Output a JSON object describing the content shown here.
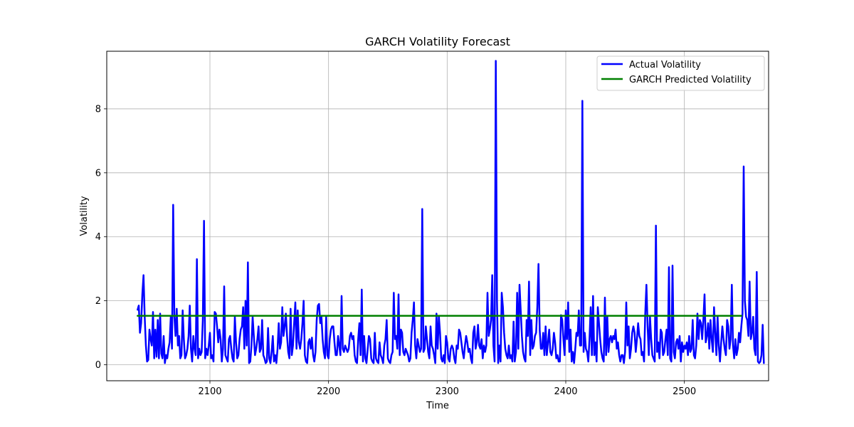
{
  "chart_data": {
    "type": "line",
    "title": "GARCH Volatility Forecast",
    "xlabel": "Time",
    "ylabel": "Volatility",
    "xlim": [
      2013,
      2571
    ],
    "ylim": [
      -0.5,
      9.8
    ],
    "xticks": [
      2100,
      2200,
      2300,
      2400,
      2500
    ],
    "yticks": [
      0,
      2,
      4,
      6,
      8
    ],
    "grid": true,
    "legend_position": "top-right",
    "series": [
      {
        "name": "Actual Volatility",
        "color": "#0000ff",
        "x_start": 2039,
        "x_step": 1,
        "values": [
          1.72,
          1.85,
          1.0,
          1.3,
          2.2,
          2.8,
          1.5,
          0.6,
          0.1,
          0.15,
          1.1,
          0.8,
          0.6,
          1.65,
          0.2,
          1.1,
          0.25,
          1.4,
          0.2,
          1.6,
          0.35,
          0.2,
          0.9,
          0.05,
          0.3,
          0.2,
          0.5,
          0.7,
          1.5,
          0.5,
          5.0,
          1.5,
          0.9,
          1.75,
          0.6,
          0.9,
          0.2,
          0.3,
          1.7,
          0.8,
          0.2,
          0.3,
          0.5,
          0.9,
          1.85,
          0.5,
          0.1,
          0.9,
          0.5,
          0.3,
          3.3,
          0.2,
          0.5,
          0.3,
          0.4,
          1.4,
          4.5,
          0.2,
          0.5,
          0.3,
          0.6,
          1.0,
          0.2,
          0.3,
          0.1,
          1.65,
          1.6,
          1.2,
          0.7,
          1.1,
          0.8,
          0.1,
          0.5,
          2.45,
          0.3,
          0.2,
          0.1,
          0.8,
          0.9,
          0.5,
          0.2,
          0.1,
          1.5,
          0.7,
          0.2,
          0.3,
          0.8,
          1.1,
          1.2,
          1.8,
          0.5,
          2.0,
          0.6,
          3.2,
          0.05,
          0.1,
          0.6,
          1.5,
          0.9,
          0.3,
          0.5,
          0.8,
          1.2,
          0.4,
          0.5,
          1.4,
          0.3,
          0.2,
          0.05,
          0.1,
          1.15,
          0.2,
          0.05,
          0.4,
          0.9,
          0.1,
          0.3,
          0.05,
          0.5,
          1.3,
          0.5,
          0.7,
          1.8,
          0.9,
          1.2,
          1.6,
          0.9,
          0.4,
          0.2,
          1.75,
          0.3,
          0.6,
          1.3,
          1.95,
          0.5,
          1.7,
          0.7,
          0.5,
          0.8,
          1.3,
          2.0,
          0.3,
          0.1,
          0.05,
          0.7,
          0.8,
          0.5,
          0.85,
          0.3,
          0.1,
          0.4,
          1.4,
          1.85,
          1.9,
          1.3,
          1.5,
          0.8,
          0.4,
          0.2,
          1.5,
          0.3,
          0.2,
          0.8,
          1.1,
          1.2,
          1.2,
          0.7,
          0.3,
          0.3,
          0.9,
          0.6,
          0.3,
          2.15,
          0.5,
          0.4,
          0.6,
          0.5,
          0.4,
          0.5,
          0.9,
          1.0,
          0.8,
          0.9,
          0.3,
          0.1,
          0.05,
          0.8,
          1.3,
          0.3,
          2.35,
          0.1,
          0.9,
          0.2,
          0.05,
          0.5,
          0.9,
          0.8,
          0.2,
          0.1,
          0.05,
          1.0,
          0.2,
          0.1,
          0.05,
          0.7,
          0.3,
          0.2,
          0.05,
          0.6,
          0.8,
          1.4,
          0.2,
          0.1,
          0.05,
          0.3,
          0.4,
          2.25,
          0.8,
          0.9,
          0.5,
          2.2,
          0.3,
          1.1,
          1.0,
          0.4,
          0.3,
          0.5,
          0.4,
          0.3,
          0.1,
          0.2,
          1.0,
          1.4,
          1.95,
          0.6,
          0.2,
          0.8,
          0.6,
          0.4,
          0.5,
          4.87,
          0.4,
          0.5,
          1.2,
          0.8,
          0.4,
          0.2,
          1.2,
          0.6,
          0.5,
          0.3,
          0.05,
          1.6,
          0.5,
          1.5,
          1.0,
          0.2,
          0.1,
          0.3,
          0.05,
          0.9,
          0.7,
          0.2,
          0.1,
          0.5,
          0.6,
          0.5,
          0.2,
          0.05,
          0.6,
          0.5,
          1.1,
          1.0,
          0.7,
          0.4,
          0.2,
          0.6,
          0.9,
          0.7,
          0.4,
          0.5,
          0.2,
          0.05,
          1.0,
          1.2,
          0.5,
          0.7,
          1.25,
          0.6,
          0.5,
          0.8,
          0.2,
          0.6,
          0.4,
          0.6,
          2.25,
          0.9,
          1.1,
          1.4,
          2.8,
          0.6,
          0.1,
          9.5,
          2.0,
          0.05,
          0.6,
          0.1,
          2.25,
          1.8,
          1.0,
          0.5,
          0.3,
          0.2,
          0.6,
          0.2,
          0.3,
          0.1,
          1.35,
          0.1,
          0.4,
          2.25,
          0.5,
          2.5,
          1.7,
          0.9,
          0.4,
          0.2,
          0.1,
          1.4,
          0.9,
          2.6,
          0.3,
          1.4,
          0.5,
          0.6,
          0.9,
          1.0,
          1.8,
          3.15,
          1.1,
          0.5,
          0.5,
          1.0,
          0.3,
          1.2,
          0.3,
          0.7,
          1.1,
          0.4,
          0.3,
          0.5,
          1.0,
          0.7,
          0.2,
          0.3,
          0.1,
          0.1,
          1.55,
          1.4,
          0.8,
          0.3,
          1.7,
          0.8,
          1.95,
          0.4,
          1.1,
          0.1,
          0.4,
          0.05,
          0.5,
          1.0,
          0.9,
          1.7,
          0.6,
          0.6,
          8.25,
          0.4,
          1.0,
          0.5,
          0.4,
          0.1,
          0.8,
          1.8,
          0.3,
          2.15,
          0.3,
          0.7,
          0.1,
          1.8,
          1.3,
          0.8,
          0.4,
          0.2,
          0.1,
          2.1,
          0.3,
          1.5,
          0.4,
          0.8,
          0.9,
          0.7,
          0.9,
          0.8,
          1.1,
          0.5,
          0.7,
          0.3,
          0.1,
          0.3,
          0.3,
          0.05,
          0.4,
          1.95,
          0.6,
          1.2,
          0.2,
          0.5,
          1.0,
          1.2,
          1.0,
          0.4,
          0.8,
          1.3,
          0.9,
          0.8,
          0.3,
          0.4,
          0.1,
          1.6,
          2.5,
          1.2,
          0.3,
          1.5,
          0.8,
          0.3,
          0.2,
          0.1,
          4.35,
          0.4,
          0.7,
          0.2,
          1.1,
          1.0,
          0.3,
          0.4,
          0.8,
          1.1,
          0.3,
          3.05,
          0.2,
          0.1,
          3.1,
          0.4,
          0.2,
          0.7,
          0.8,
          0.5,
          0.9,
          0.1,
          0.7,
          0.4,
          0.6,
          0.5,
          0.7,
          0.3,
          0.9,
          0.4,
          0.5,
          1.4,
          0.3,
          0.2,
          0.6,
          1.6,
          0.8,
          1.4,
          1.3,
          0.8,
          1.4,
          2.2,
          0.7,
          0.9,
          1.3,
          0.5,
          1.4,
          0.8,
          0.4,
          1.8,
          1.0,
          0.3,
          1.5,
          0.6,
          0.1,
          0.7,
          1.2,
          0.8,
          0.5,
          0.3,
          1.4,
          1.2,
          0.5,
          0.8,
          2.5,
          0.6,
          0.2,
          0.8,
          0.3,
          0.5,
          1.0,
          0.7,
          1.2,
          1.6,
          6.2,
          2.0,
          1.5,
          1.4,
          0.9,
          2.6,
          0.8,
          1.0,
          1.5,
          0.5,
          0.3,
          2.9,
          0.1,
          0.05,
          0.1,
          0.3,
          1.25,
          0.05
        ]
      },
      {
        "name": "GARCH Predicted Volatility",
        "color": "#008000",
        "x": [
          2039,
          2548
        ],
        "values": [
          1.53,
          1.53
        ]
      }
    ]
  }
}
